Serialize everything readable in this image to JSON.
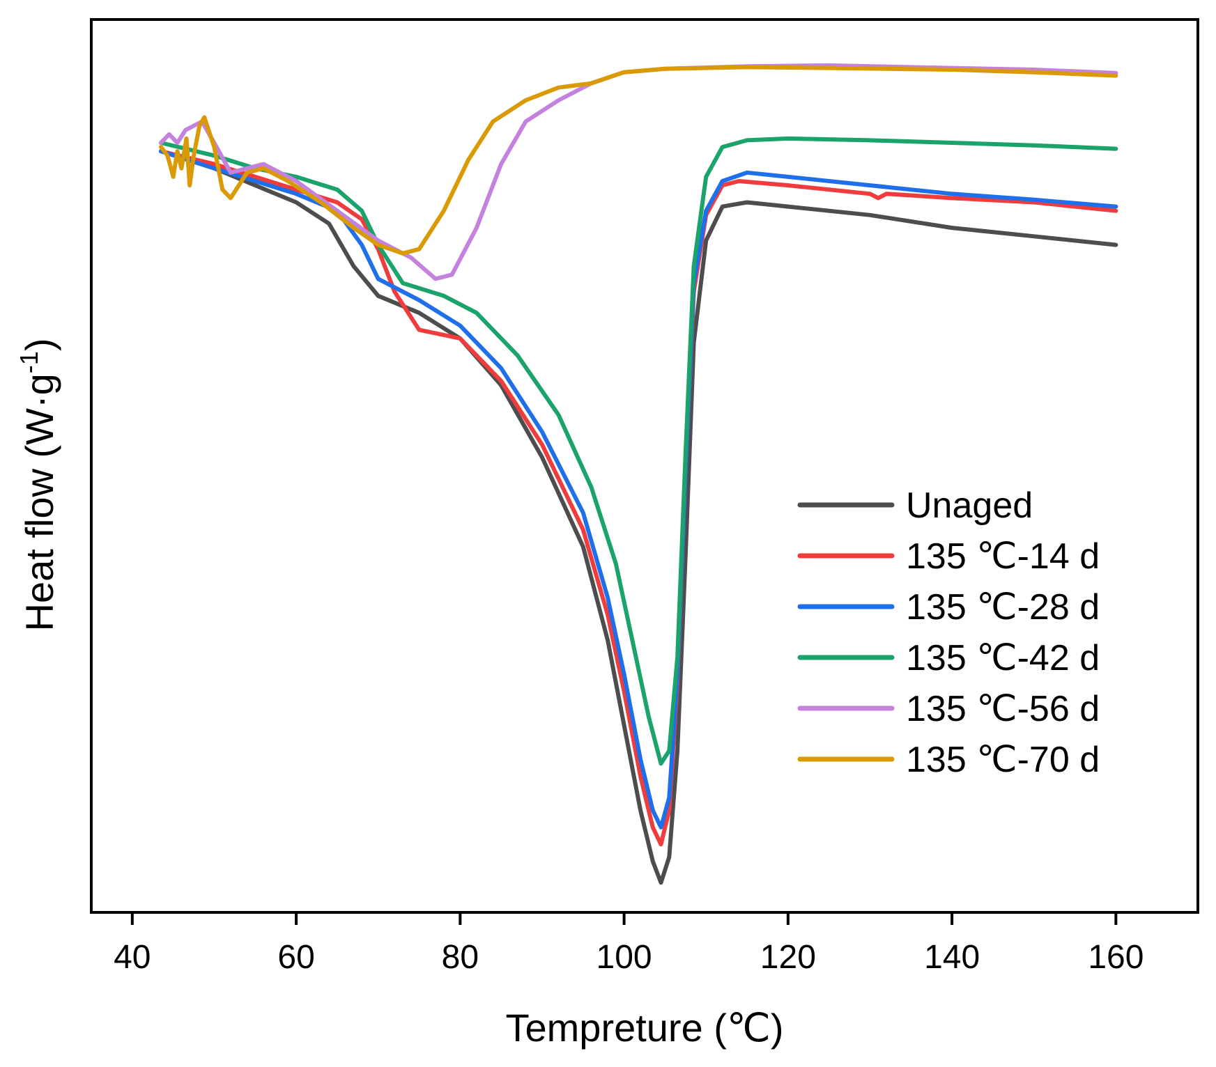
{
  "chart_data": {
    "type": "line",
    "xlabel": "Tempreture (℃)",
    "ylabel_main": "Heat flow (W·g",
    "ylabel_sup": "-1",
    "ylabel_close": ")",
    "xlim": [
      35,
      170
    ],
    "ylim": [
      -10.2,
      0.3
    ],
    "xticks": [
      40,
      60,
      80,
      100,
      120,
      140,
      160
    ],
    "xtick_labels": [
      "40",
      "60",
      "80",
      "100",
      "120",
      "140",
      "160"
    ],
    "y_ticks_shown": false,
    "grid": false,
    "legend_position": "center-right",
    "series": [
      {
        "name": "Unaged",
        "color": "#4d4d4d",
        "points": [
          [
            43.5,
            -1.25
          ],
          [
            50,
            -1.45
          ],
          [
            55,
            -1.65
          ],
          [
            60,
            -1.85
          ],
          [
            64,
            -2.1
          ],
          [
            67,
            -2.6
          ],
          [
            70,
            -2.95
          ],
          [
            75,
            -3.15
          ],
          [
            80,
            -3.45
          ],
          [
            85,
            -4.0
          ],
          [
            90,
            -4.85
          ],
          [
            95,
            -5.9
          ],
          [
            98,
            -7.0
          ],
          [
            100,
            -8.0
          ],
          [
            102,
            -9.0
          ],
          [
            103.5,
            -9.6
          ],
          [
            104.5,
            -9.85
          ],
          [
            105.5,
            -9.55
          ],
          [
            106.5,
            -8.3
          ],
          [
            107.5,
            -6.0
          ],
          [
            108.5,
            -3.5
          ],
          [
            110,
            -2.3
          ],
          [
            112,
            -1.9
          ],
          [
            115,
            -1.85
          ],
          [
            120,
            -1.9
          ],
          [
            130,
            -2.0
          ],
          [
            140,
            -2.15
          ],
          [
            150,
            -2.25
          ],
          [
            160,
            -2.35
          ]
        ]
      },
      {
        "name": "135 ℃-14 d",
        "color": "#f03c3c",
        "points": [
          [
            43.5,
            -1.25
          ],
          [
            50,
            -1.4
          ],
          [
            55,
            -1.55
          ],
          [
            60,
            -1.7
          ],
          [
            65,
            -1.85
          ],
          [
            68,
            -2.05
          ],
          [
            70,
            -2.4
          ],
          [
            72,
            -2.9
          ],
          [
            75,
            -3.35
          ],
          [
            80,
            -3.45
          ],
          [
            85,
            -3.95
          ],
          [
            90,
            -4.7
          ],
          [
            95,
            -5.7
          ],
          [
            98,
            -6.7
          ],
          [
            100,
            -7.6
          ],
          [
            102,
            -8.6
          ],
          [
            103.5,
            -9.2
          ],
          [
            104.5,
            -9.4
          ],
          [
            105.5,
            -9.0
          ],
          [
            106.5,
            -7.5
          ],
          [
            107.5,
            -5.0
          ],
          [
            108.5,
            -2.9
          ],
          [
            110,
            -2.0
          ],
          [
            112,
            -1.65
          ],
          [
            114,
            -1.6
          ],
          [
            120,
            -1.65
          ],
          [
            130,
            -1.75
          ],
          [
            131,
            -1.8
          ],
          [
            132,
            -1.75
          ],
          [
            140,
            -1.8
          ],
          [
            150,
            -1.85
          ],
          [
            160,
            -1.95
          ]
        ]
      },
      {
        "name": "135 ℃-28 d",
        "color": "#1f6fea",
        "points": [
          [
            43.5,
            -1.25
          ],
          [
            50,
            -1.45
          ],
          [
            55,
            -1.6
          ],
          [
            60,
            -1.75
          ],
          [
            65,
            -1.95
          ],
          [
            68,
            -2.35
          ],
          [
            70,
            -2.75
          ],
          [
            75,
            -3.0
          ],
          [
            80,
            -3.3
          ],
          [
            85,
            -3.8
          ],
          [
            90,
            -4.55
          ],
          [
            95,
            -5.5
          ],
          [
            98,
            -6.5
          ],
          [
            100,
            -7.4
          ],
          [
            102,
            -8.4
          ],
          [
            103.5,
            -9.0
          ],
          [
            104.5,
            -9.2
          ],
          [
            105.5,
            -8.85
          ],
          [
            106.5,
            -7.4
          ],
          [
            107.5,
            -5.0
          ],
          [
            108.5,
            -2.8
          ],
          [
            110,
            -1.95
          ],
          [
            112,
            -1.6
          ],
          [
            115,
            -1.5
          ],
          [
            120,
            -1.55
          ],
          [
            130,
            -1.65
          ],
          [
            140,
            -1.75
          ],
          [
            150,
            -1.82
          ],
          [
            160,
            -1.9
          ]
        ]
      },
      {
        "name": "135 ℃-42 d",
        "color": "#1aa36b",
        "points": [
          [
            43.5,
            -1.15
          ],
          [
            50,
            -1.3
          ],
          [
            55,
            -1.45
          ],
          [
            60,
            -1.55
          ],
          [
            65,
            -1.7
          ],
          [
            68,
            -1.95
          ],
          [
            70,
            -2.35
          ],
          [
            73,
            -2.8
          ],
          [
            78,
            -2.95
          ],
          [
            82,
            -3.15
          ],
          [
            87,
            -3.65
          ],
          [
            92,
            -4.35
          ],
          [
            96,
            -5.2
          ],
          [
            99,
            -6.1
          ],
          [
            101,
            -7.0
          ],
          [
            103,
            -7.9
          ],
          [
            104.5,
            -8.45
          ],
          [
            105.5,
            -8.3
          ],
          [
            106.5,
            -7.2
          ],
          [
            107.5,
            -4.8
          ],
          [
            108.5,
            -2.6
          ],
          [
            110,
            -1.55
          ],
          [
            112,
            -1.2
          ],
          [
            115,
            -1.12
          ],
          [
            120,
            -1.1
          ],
          [
            130,
            -1.12
          ],
          [
            140,
            -1.15
          ],
          [
            150,
            -1.18
          ],
          [
            160,
            -1.22
          ]
        ]
      },
      {
        "name": "135 ℃-56 d",
        "color": "#c482de",
        "points": [
          [
            43.5,
            -1.15
          ],
          [
            44.5,
            -1.05
          ],
          [
            45.5,
            -1.15
          ],
          [
            46.5,
            -1.0
          ],
          [
            47.5,
            -0.95
          ],
          [
            48.5,
            -0.9
          ],
          [
            50,
            -1.15
          ],
          [
            52,
            -1.5
          ],
          [
            54,
            -1.45
          ],
          [
            56,
            -1.4
          ],
          [
            60,
            -1.6
          ],
          [
            65,
            -1.95
          ],
          [
            70,
            -2.3
          ],
          [
            74,
            -2.5
          ],
          [
            77,
            -2.75
          ],
          [
            79,
            -2.7
          ],
          [
            82,
            -2.15
          ],
          [
            85,
            -1.4
          ],
          [
            88,
            -0.9
          ],
          [
            92,
            -0.65
          ],
          [
            96,
            -0.45
          ],
          [
            100,
            -0.32
          ],
          [
            105,
            -0.28
          ],
          [
            115,
            -0.25
          ],
          [
            125,
            -0.24
          ],
          [
            140,
            -0.27
          ],
          [
            150,
            -0.29
          ],
          [
            160,
            -0.33
          ]
        ]
      },
      {
        "name": "135 ℃-70 d",
        "color": "#d99a06",
        "points": [
          [
            43.5,
            -1.2
          ],
          [
            44.3,
            -1.3
          ],
          [
            45,
            -1.55
          ],
          [
            45.5,
            -1.25
          ],
          [
            46,
            -1.45
          ],
          [
            46.6,
            -1.1
          ],
          [
            47,
            -1.65
          ],
          [
            47.5,
            -1.3
          ],
          [
            48.2,
            -0.95
          ],
          [
            48.8,
            -0.85
          ],
          [
            50,
            -1.2
          ],
          [
            51,
            -1.7
          ],
          [
            52,
            -1.8
          ],
          [
            54,
            -1.5
          ],
          [
            56,
            -1.45
          ],
          [
            59,
            -1.6
          ],
          [
            63,
            -1.85
          ],
          [
            67,
            -2.15
          ],
          [
            70,
            -2.35
          ],
          [
            73,
            -2.45
          ],
          [
            75,
            -2.4
          ],
          [
            78,
            -1.95
          ],
          [
            81,
            -1.35
          ],
          [
            84,
            -0.9
          ],
          [
            88,
            -0.65
          ],
          [
            92,
            -0.5
          ],
          [
            96,
            -0.45
          ],
          [
            100,
            -0.32
          ],
          [
            105,
            -0.28
          ],
          [
            115,
            -0.26
          ],
          [
            125,
            -0.27
          ],
          [
            140,
            -0.29
          ],
          [
            150,
            -0.32
          ],
          [
            160,
            -0.36
          ]
        ]
      }
    ]
  }
}
